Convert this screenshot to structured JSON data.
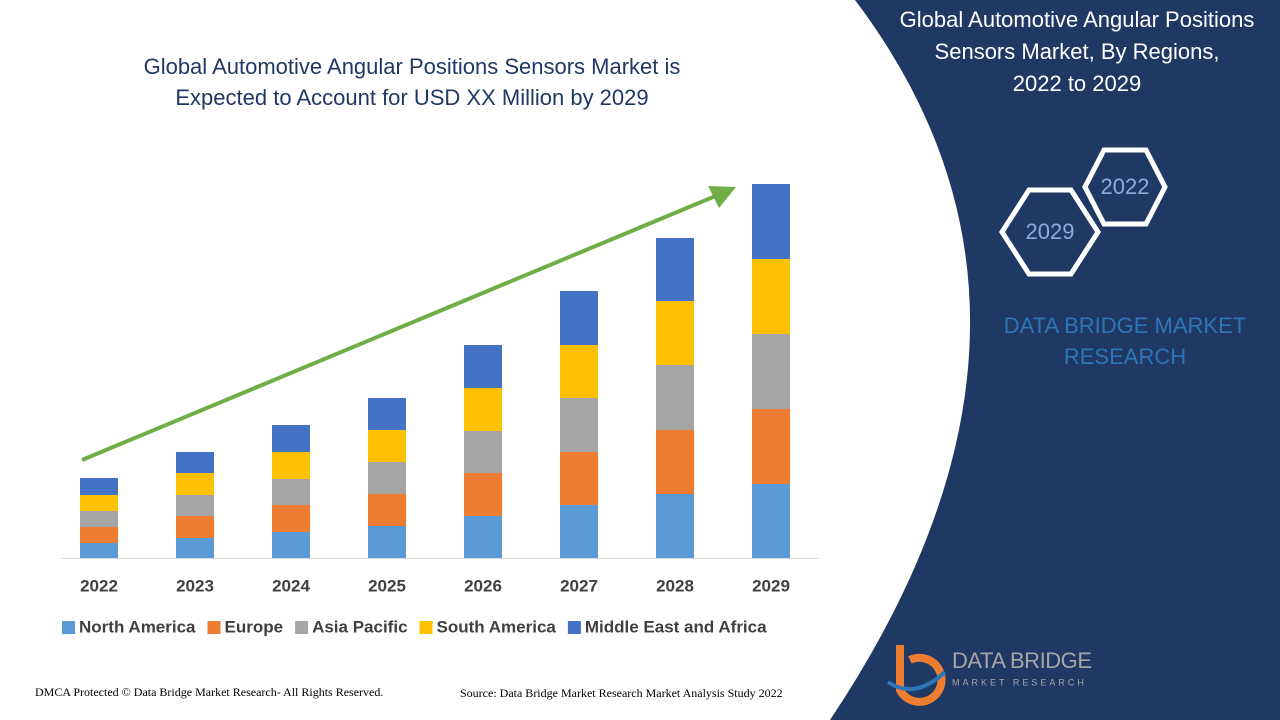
{
  "chart_data": {
    "type": "stacked_bar",
    "title_lines": [
      "Global Automotive Angular Positions Sensors Market is",
      "Expected to Account for USD XX Million by 2029"
    ],
    "categories": [
      "2022",
      "2023",
      "2024",
      "2025",
      "2026",
      "2027",
      "2028",
      "2029"
    ],
    "series": [
      {
        "name": "North America",
        "color": "#5b9bd5",
        "values": [
          15,
          20,
          26,
          32,
          42,
          53,
          64,
          74
        ]
      },
      {
        "name": "Europe",
        "color": "#ed7d31",
        "values": [
          16,
          22,
          27,
          32,
          43,
          53,
          64,
          75
        ]
      },
      {
        "name": "Asia Pacific",
        "color": "#a5a5a5",
        "values": [
          16,
          21,
          26,
          32,
          42,
          54,
          65,
          75
        ]
      },
      {
        "name": "South America",
        "color": "#ffc000",
        "values": [
          16,
          22,
          27,
          32,
          43,
          53,
          64,
          75
        ]
      },
      {
        "name": "Middle East and Africa",
        "color": "#4472c4",
        "values": [
          17,
          21,
          27,
          32,
          43,
          54,
          63,
          75
        ]
      }
    ]
  },
  "side_panel": {
    "title_lines": [
      "Global Automotive Angular Positions",
      "Sensors Market, By Regions,",
      "2022 to 2029"
    ],
    "hex_back": "2022",
    "hex_front": "2029",
    "brand_lines": [
      "DATA BRIDGE MARKET",
      "RESEARCH"
    ],
    "logo_name": "DATA BRIDGE",
    "logo_sub": "MARKET RESEARCH"
  },
  "footer": {
    "left": "DMCA Protected © Data Bridge Market Research- All Rights Reserved.",
    "right": "Source: Data Bridge Market Research Market Analysis Study 2022"
  }
}
